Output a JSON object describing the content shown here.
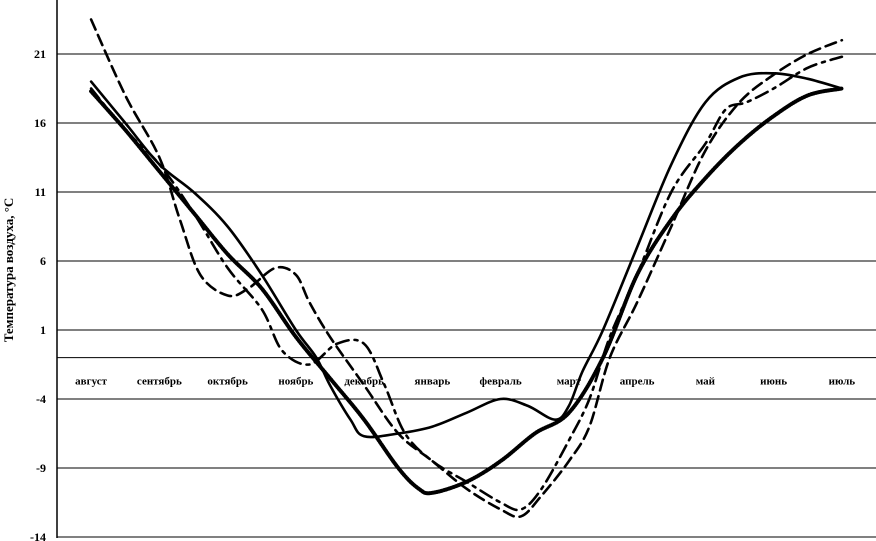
{
  "chart_data": {
    "type": "line",
    "title": "",
    "xlabel": "",
    "ylabel": "Температура воздуха, °C",
    "ylim": [
      -14,
      24
    ],
    "yticks": [
      21,
      16,
      11,
      6,
      1,
      -4,
      -9,
      -14
    ],
    "grid": true,
    "categories": [
      "август",
      "сентябрь",
      "октябрь",
      "ноябрь",
      "декабрь",
      "январь",
      "февраль",
      "март",
      "апрель",
      "май",
      "июнь",
      "июль"
    ],
    "series": [
      {
        "style": "solid",
        "color": "#000000",
        "x": [
          0,
          0.5,
          1,
          1.5,
          2,
          2.5,
          3,
          3.3,
          3.5,
          3.8,
          4,
          4.5,
          5,
          5.5,
          6,
          6.4,
          6.8,
          7,
          7.2,
          7.5,
          8,
          8.5,
          9,
          9.5,
          10,
          10.5,
          11
        ],
        "values": [
          19.0,
          16.0,
          13.0,
          11.0,
          8.5,
          5.0,
          1.0,
          -1.0,
          -3.0,
          -5.5,
          -6.7,
          -6.5,
          -6.0,
          -5.0,
          -4.0,
          -4.5,
          -5.5,
          -4.5,
          -2.0,
          1.0,
          7.0,
          13.0,
          17.5,
          19.3,
          19.6,
          19.2,
          18.5
        ]
      },
      {
        "style": "dashed",
        "color": "#000000",
        "x": [
          0,
          0.5,
          1,
          1.3,
          1.6,
          2,
          2.3,
          2.7,
          3,
          3.2,
          3.5,
          4,
          4.5,
          5,
          5.5,
          6,
          6.3,
          6.6,
          7,
          7.3,
          7.6,
          8,
          8.5,
          9,
          9.5,
          10,
          10.5,
          11
        ],
        "values": [
          23.5,
          18.0,
          13.5,
          9.0,
          5.0,
          3.5,
          4.0,
          5.5,
          5.0,
          3.0,
          0.5,
          -3.0,
          -6.5,
          -8.5,
          -10.5,
          -12.0,
          -12.5,
          -11.0,
          -8.5,
          -6.0,
          -1.0,
          3.0,
          8.5,
          14.0,
          17.5,
          19.5,
          21.0,
          22.0
        ]
      },
      {
        "style": "dash-dot",
        "color": "#000000",
        "x": [
          0,
          0.5,
          1,
          1.5,
          2,
          2.5,
          2.8,
          3.2,
          3.6,
          4,
          4.3,
          4.6,
          5,
          5.5,
          6,
          6.3,
          6.6,
          7,
          7.3,
          7.6,
          8,
          8.5,
          9,
          9.3,
          9.6,
          10,
          10.5,
          11
        ],
        "values": [
          18.5,
          15.5,
          13.0,
          9.5,
          5.5,
          2.5,
          -0.5,
          -1.5,
          0.0,
          0.0,
          -3.0,
          -6.5,
          -8.5,
          -10.0,
          -11.5,
          -12.0,
          -10.5,
          -7.0,
          -4.0,
          0.5,
          5.0,
          11.0,
          14.5,
          17.0,
          17.5,
          18.5,
          20.0,
          20.8
        ]
      },
      {
        "style": "dotted-thick",
        "color": "#000000",
        "x": [
          0,
          0.5,
          1,
          1.5,
          2,
          2.5,
          3,
          3.5,
          4,
          4.5,
          4.8,
          5,
          5.5,
          6,
          6.5,
          7,
          7.5,
          8,
          8.5,
          9,
          9.5,
          10,
          10.5,
          11
        ],
        "values": [
          18.3,
          15.5,
          12.5,
          9.5,
          6.5,
          4.0,
          0.5,
          -2.5,
          -5.5,
          -9.0,
          -10.5,
          -10.8,
          -10.0,
          -8.5,
          -6.5,
          -5.0,
          -1.0,
          5.0,
          9.0,
          12.0,
          14.5,
          16.5,
          18.0,
          18.5
        ]
      }
    ]
  }
}
